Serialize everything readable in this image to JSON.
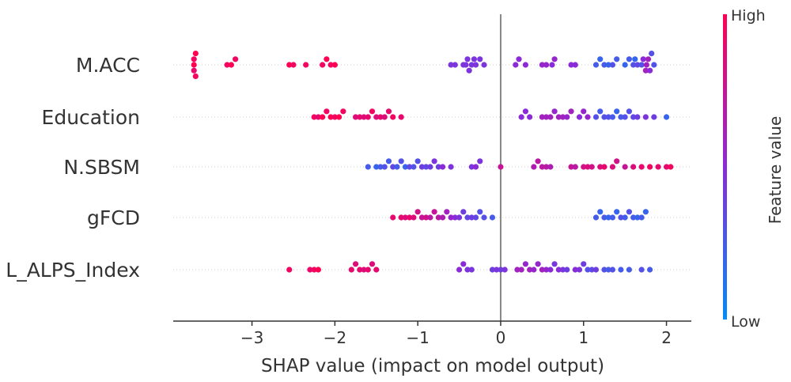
{
  "chart_data": {
    "type": "scatter",
    "subtype": "shap-beeswarm",
    "xlabel": "SHAP value (impact on model output)",
    "xlim": [
      -3.95,
      2.3
    ],
    "xticks": [
      -3,
      -2,
      -1,
      0,
      1,
      2
    ],
    "xtick_labels": [
      "−3",
      "−2",
      "−1",
      "0",
      "1",
      "2"
    ],
    "colorbar": {
      "title": "Feature value",
      "high_label": "High",
      "low_label": "Low",
      "high_color": "#ff0052",
      "low_color": "#008bfb"
    },
    "features": [
      {
        "name": "M.ACC",
        "points": [
          [
            -3.7,
            1.0
          ],
          [
            -3.7,
            0.95
          ],
          [
            -3.7,
            0.9
          ],
          [
            -3.68,
            1.0
          ],
          [
            -3.68,
            0.95
          ],
          [
            -3.3,
            0.95
          ],
          [
            -3.25,
            1.0
          ],
          [
            -3.2,
            0.95
          ],
          [
            -2.55,
            1.0
          ],
          [
            -2.5,
            0.95
          ],
          [
            -2.35,
            0.95
          ],
          [
            -2.15,
            0.95
          ],
          [
            -2.1,
            1.0
          ],
          [
            -2.05,
            0.95
          ],
          [
            -2.0,
            1.0
          ],
          [
            -0.6,
            0.45
          ],
          [
            -0.55,
            0.45
          ],
          [
            -0.45,
            0.45
          ],
          [
            -0.42,
            0.45
          ],
          [
            -0.4,
            0.45
          ],
          [
            -0.38,
            0.45
          ],
          [
            -0.35,
            0.45
          ],
          [
            -0.32,
            0.45
          ],
          [
            -0.3,
            0.45
          ],
          [
            -0.25,
            0.45
          ],
          [
            -0.2,
            0.45
          ],
          [
            0.18,
            0.5
          ],
          [
            0.22,
            0.5
          ],
          [
            0.3,
            0.5
          ],
          [
            0.5,
            0.55
          ],
          [
            0.55,
            0.55
          ],
          [
            0.62,
            0.5
          ],
          [
            0.65,
            0.55
          ],
          [
            0.85,
            0.5
          ],
          [
            0.9,
            0.5
          ],
          [
            1.15,
            0.25
          ],
          [
            1.2,
            0.2
          ],
          [
            1.25,
            0.25
          ],
          [
            1.3,
            0.2
          ],
          [
            1.35,
            0.3
          ],
          [
            1.4,
            0.25
          ],
          [
            1.5,
            0.2
          ],
          [
            1.55,
            0.25
          ],
          [
            1.6,
            0.3
          ],
          [
            1.62,
            0.2
          ],
          [
            1.65,
            0.35
          ],
          [
            1.7,
            0.3
          ],
          [
            1.72,
            0.5
          ],
          [
            1.75,
            0.6
          ],
          [
            1.76,
            0.6
          ],
          [
            1.78,
            0.6
          ],
          [
            1.8,
            0.5
          ],
          [
            1.82,
            0.3
          ],
          [
            1.85,
            0.3
          ]
        ]
      },
      {
        "name": "Education",
        "points": [
          [
            -2.25,
            0.95
          ],
          [
            -2.2,
            0.9
          ],
          [
            -2.15,
            1.0
          ],
          [
            -2.1,
            0.95
          ],
          [
            -2.05,
            1.0
          ],
          [
            -2.0,
            0.95
          ],
          [
            -1.95,
            1.0
          ],
          [
            -1.9,
            0.95
          ],
          [
            -1.75,
            0.85
          ],
          [
            -1.7,
            0.9
          ],
          [
            -1.65,
            0.85
          ],
          [
            -1.6,
            0.9
          ],
          [
            -1.55,
            0.95
          ],
          [
            -1.5,
            0.85
          ],
          [
            -1.45,
            0.9
          ],
          [
            -1.4,
            0.85
          ],
          [
            -1.35,
            0.9
          ],
          [
            -1.3,
            0.95
          ],
          [
            -1.2,
            0.9
          ],
          [
            0.25,
            0.5
          ],
          [
            0.3,
            0.5
          ],
          [
            0.35,
            0.5
          ],
          [
            0.5,
            0.6
          ],
          [
            0.55,
            0.6
          ],
          [
            0.6,
            0.6
          ],
          [
            0.65,
            0.55
          ],
          [
            0.7,
            0.6
          ],
          [
            0.75,
            0.6
          ],
          [
            0.8,
            0.55
          ],
          [
            0.85,
            0.6
          ],
          [
            0.95,
            0.5
          ],
          [
            1.0,
            0.55
          ],
          [
            1.05,
            0.55
          ],
          [
            1.15,
            0.3
          ],
          [
            1.2,
            0.25
          ],
          [
            1.25,
            0.3
          ],
          [
            1.3,
            0.3
          ],
          [
            1.35,
            0.25
          ],
          [
            1.4,
            0.2
          ],
          [
            1.45,
            0.25
          ],
          [
            1.5,
            0.3
          ],
          [
            1.55,
            0.3
          ],
          [
            1.6,
            0.35
          ],
          [
            1.65,
            0.4
          ],
          [
            1.75,
            0.45
          ],
          [
            1.85,
            0.4
          ],
          [
            2.0,
            0.2
          ]
        ]
      },
      {
        "name": "N.SBSM",
        "points": [
          [
            -1.6,
            0.25
          ],
          [
            -1.5,
            0.2
          ],
          [
            -1.45,
            0.25
          ],
          [
            -1.4,
            0.3
          ],
          [
            -1.35,
            0.25
          ],
          [
            -1.3,
            0.35
          ],
          [
            -1.25,
            0.25
          ],
          [
            -1.2,
            0.3
          ],
          [
            -1.15,
            0.2
          ],
          [
            -1.1,
            0.35
          ],
          [
            -1.05,
            0.3
          ],
          [
            -1.0,
            0.3
          ],
          [
            -0.95,
            0.4
          ],
          [
            -0.9,
            0.35
          ],
          [
            -0.85,
            0.4
          ],
          [
            -0.8,
            0.45
          ],
          [
            -0.75,
            0.4
          ],
          [
            -0.7,
            0.5
          ],
          [
            -0.6,
            0.45
          ],
          [
            -0.35,
            0.45
          ],
          [
            -0.3,
            0.5
          ],
          [
            -0.25,
            0.45
          ],
          [
            0.0,
            0.75
          ],
          [
            0.4,
            0.65
          ],
          [
            0.45,
            0.7
          ],
          [
            0.5,
            0.7
          ],
          [
            0.55,
            0.7
          ],
          [
            0.6,
            0.65
          ],
          [
            0.85,
            0.75
          ],
          [
            0.9,
            0.7
          ],
          [
            1.0,
            0.8
          ],
          [
            1.05,
            0.85
          ],
          [
            1.1,
            0.8
          ],
          [
            1.2,
            0.85
          ],
          [
            1.25,
            0.9
          ],
          [
            1.35,
            0.85
          ],
          [
            1.4,
            0.8
          ],
          [
            1.5,
            0.75
          ],
          [
            1.6,
            0.85
          ],
          [
            1.7,
            0.9
          ],
          [
            1.8,
            0.95
          ],
          [
            1.9,
            0.9
          ],
          [
            2.0,
            0.9
          ],
          [
            2.05,
            0.95
          ]
        ]
      },
      {
        "name": "gFCD",
        "points": [
          [
            -1.3,
            0.9
          ],
          [
            -1.2,
            0.9
          ],
          [
            -1.15,
            0.85
          ],
          [
            -1.1,
            0.9
          ],
          [
            -1.05,
            0.85
          ],
          [
            -1.0,
            0.8
          ],
          [
            -0.95,
            0.75
          ],
          [
            -0.9,
            0.8
          ],
          [
            -0.85,
            0.7
          ],
          [
            -0.8,
            0.75
          ],
          [
            -0.75,
            0.7
          ],
          [
            -0.7,
            0.65
          ],
          [
            -0.65,
            0.6
          ],
          [
            -0.6,
            0.55
          ],
          [
            -0.55,
            0.5
          ],
          [
            -0.5,
            0.45
          ],
          [
            -0.45,
            0.4
          ],
          [
            -0.4,
            0.35
          ],
          [
            -0.35,
            0.4
          ],
          [
            -0.3,
            0.35
          ],
          [
            -0.25,
            0.3
          ],
          [
            -0.2,
            0.3
          ],
          [
            -0.1,
            0.25
          ],
          [
            1.15,
            0.25
          ],
          [
            1.2,
            0.2
          ],
          [
            1.25,
            0.25
          ],
          [
            1.3,
            0.2
          ],
          [
            1.35,
            0.25
          ],
          [
            1.4,
            0.2
          ],
          [
            1.45,
            0.3
          ],
          [
            1.5,
            0.25
          ],
          [
            1.55,
            0.3
          ],
          [
            1.6,
            0.25
          ],
          [
            1.65,
            0.2
          ],
          [
            1.7,
            0.25
          ],
          [
            1.75,
            0.2
          ]
        ]
      },
      {
        "name": "L_ALPS_Index",
        "points": [
          [
            -2.55,
            0.95
          ],
          [
            -2.3,
            0.9
          ],
          [
            -2.25,
            0.95
          ],
          [
            -2.2,
            1.0
          ],
          [
            -1.8,
            0.9
          ],
          [
            -1.75,
            0.85
          ],
          [
            -1.7,
            0.9
          ],
          [
            -1.65,
            0.85
          ],
          [
            -1.6,
            0.9
          ],
          [
            -1.55,
            0.85
          ],
          [
            -1.5,
            0.9
          ],
          [
            -0.5,
            0.5
          ],
          [
            -0.45,
            0.5
          ],
          [
            -0.4,
            0.45
          ],
          [
            -0.35,
            0.45
          ],
          [
            -0.1,
            0.4
          ],
          [
            -0.05,
            0.45
          ],
          [
            0.0,
            0.4
          ],
          [
            0.05,
            0.45
          ],
          [
            0.2,
            0.6
          ],
          [
            0.25,
            0.6
          ],
          [
            0.3,
            0.55
          ],
          [
            0.35,
            0.6
          ],
          [
            0.4,
            0.55
          ],
          [
            0.45,
            0.55
          ],
          [
            0.5,
            0.6
          ],
          [
            0.55,
            0.55
          ],
          [
            0.6,
            0.5
          ],
          [
            0.65,
            0.45
          ],
          [
            0.7,
            0.5
          ],
          [
            0.75,
            0.45
          ],
          [
            0.8,
            0.4
          ],
          [
            0.9,
            0.5
          ],
          [
            0.95,
            0.45
          ],
          [
            1.0,
            0.4
          ],
          [
            1.05,
            0.3
          ],
          [
            1.1,
            0.35
          ],
          [
            1.15,
            0.4
          ],
          [
            1.25,
            0.3
          ],
          [
            1.3,
            0.25
          ],
          [
            1.35,
            0.3
          ],
          [
            1.45,
            0.25
          ],
          [
            1.55,
            0.25
          ],
          [
            1.7,
            0.3
          ],
          [
            1.8,
            0.25
          ]
        ]
      }
    ]
  }
}
